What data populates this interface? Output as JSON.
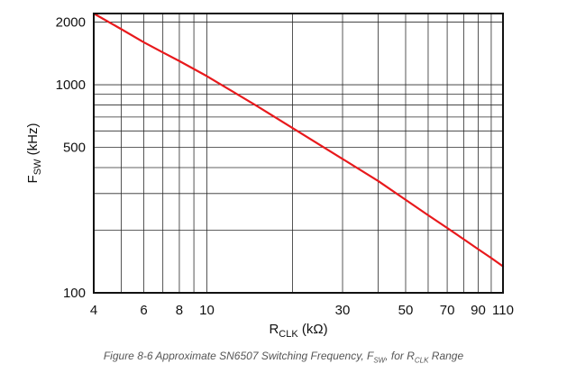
{
  "chart_data": {
    "type": "line",
    "title": "",
    "xlabel": {
      "main": "R",
      "sub": "CLK",
      "unit": " (kΩ)"
    },
    "ylabel": {
      "main": "F",
      "sub": "SW",
      "unit": " (kHz)"
    },
    "x_scale": "log",
    "y_scale": "log",
    "xlim": [
      4,
      110
    ],
    "ylim": [
      100,
      2200
    ],
    "x_tick_labels": [
      {
        "value": 4,
        "label": "4"
      },
      {
        "value": 6,
        "label": "6"
      },
      {
        "value": 8,
        "label": "8"
      },
      {
        "value": 10,
        "label": "10"
      },
      {
        "value": 30,
        "label": "30"
      },
      {
        "value": 50,
        "label": "50"
      },
      {
        "value": 70,
        "label": "70"
      },
      {
        "value": 90,
        "label": "90"
      },
      {
        "value": 110,
        "label": "110"
      }
    ],
    "y_tick_labels": [
      {
        "value": 100,
        "label": "100"
      },
      {
        "value": 500,
        "label": "500"
      },
      {
        "value": 1000,
        "label": "1000"
      },
      {
        "value": 2000,
        "label": "2000"
      }
    ],
    "x_grid": [
      5,
      6,
      7,
      8,
      9,
      10,
      20,
      30,
      40,
      50,
      60,
      70,
      80,
      90,
      100
    ],
    "y_grid": [
      200,
      300,
      400,
      500,
      600,
      700,
      800,
      900,
      1000,
      2000
    ],
    "grid": true,
    "series": [
      {
        "color": "#e8191c",
        "x": [
          4,
          5,
          6,
          7,
          8,
          10,
          15,
          20,
          30,
          40,
          50,
          60,
          70,
          80,
          90,
          100,
          110
        ],
        "y": [
          2200,
          1850,
          1600,
          1430,
          1300,
          1100,
          790,
          620,
          440,
          345,
          280,
          236,
          205,
          181,
          162,
          147,
          134
        ]
      }
    ]
  },
  "caption": {
    "prefix": "Figure 8-6 Approximate SN6507 Switching Frequency, F",
    "sub1": "SW",
    "middle": ", for R",
    "sub2": "CLK",
    "suffix": " Range"
  }
}
